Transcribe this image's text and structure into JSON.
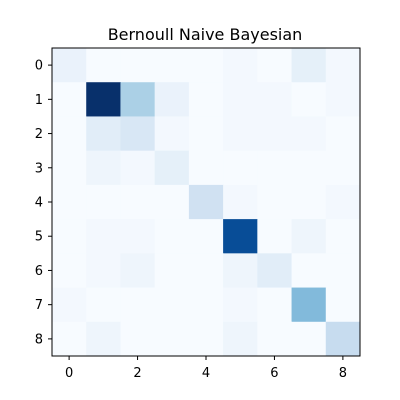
{
  "chart_data": {
    "type": "heatmap",
    "title": "Bernoull Naive Bayesian",
    "xlabel": "",
    "ylabel": "",
    "colormap": "Blues",
    "xticks": [
      0,
      2,
      4,
      6,
      8
    ],
    "yticks": [
      0,
      1,
      2,
      3,
      4,
      5,
      6,
      7,
      8
    ],
    "rows": 9,
    "cols": 9,
    "max_value": 45,
    "matrix": [
      [
        3,
        0,
        0,
        0,
        0,
        1,
        0,
        4,
        1
      ],
      [
        0,
        45,
        15,
        3,
        0,
        1,
        1,
        0,
        1
      ],
      [
        0,
        5,
        7,
        1,
        0,
        1,
        1,
        1,
        0
      ],
      [
        0,
        2,
        1,
        4,
        0,
        0,
        0,
        0,
        0
      ],
      [
        0,
        0,
        0,
        0,
        9,
        1,
        0,
        0,
        1
      ],
      [
        0,
        1,
        1,
        0,
        0,
        40,
        0,
        2,
        0
      ],
      [
        0,
        1,
        2,
        0,
        0,
        2,
        5,
        0,
        0
      ],
      [
        1,
        0,
        0,
        0,
        0,
        1,
        0,
        20,
        0
      ],
      [
        0,
        2,
        0,
        0,
        0,
        2,
        0,
        0,
        11
      ]
    ]
  }
}
